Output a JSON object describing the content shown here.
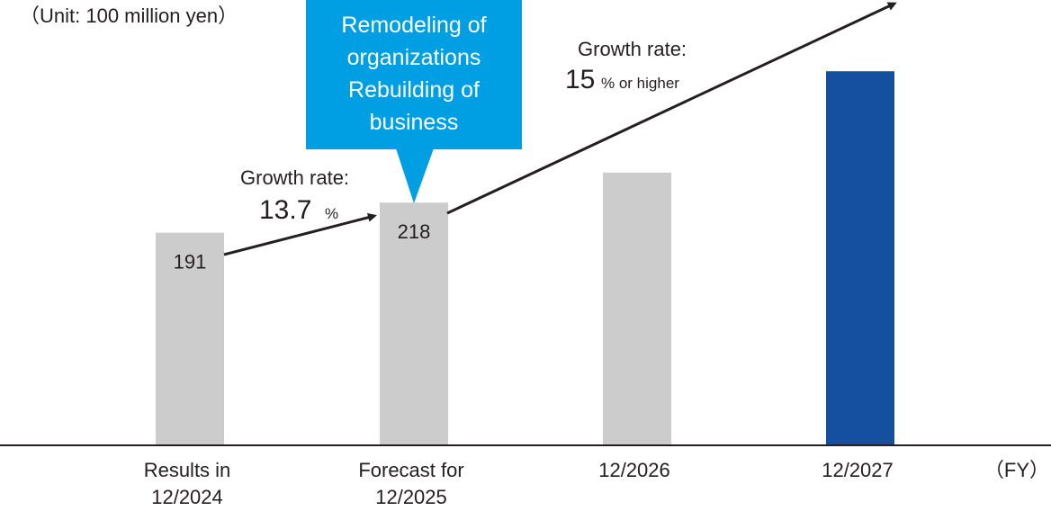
{
  "chart_data": {
    "type": "bar",
    "unit_label": "（Unit: 100 million yen）",
    "x_unit_label": "（FY）",
    "categories": [
      [
        "Results in",
        "12/2024"
      ],
      [
        "Forecast for",
        "12/2025"
      ],
      [
        "12/2026"
      ],
      [
        "12/2027"
      ]
    ],
    "values": [
      191,
      218,
      245,
      336
    ],
    "data_labels": [
      "191",
      "218",
      "",
      ""
    ],
    "colors": [
      "#cccccc",
      "#cccccc",
      "#cccccc",
      "#1550a0"
    ],
    "ylim": [
      0,
      400
    ],
    "grid": false,
    "annotations": {
      "growth1": {
        "title": "Growth rate:",
        "value": "13.7",
        "unit": "%"
      },
      "growth2": {
        "title": "Growth rate:",
        "value": "15",
        "unit": "% or higher"
      },
      "callout": {
        "lines": [
          "Remodeling of",
          "organizations",
          "Rebuilding of",
          "business"
        ],
        "color": "#009fe3"
      }
    },
    "arrow_color": "#231f20"
  }
}
